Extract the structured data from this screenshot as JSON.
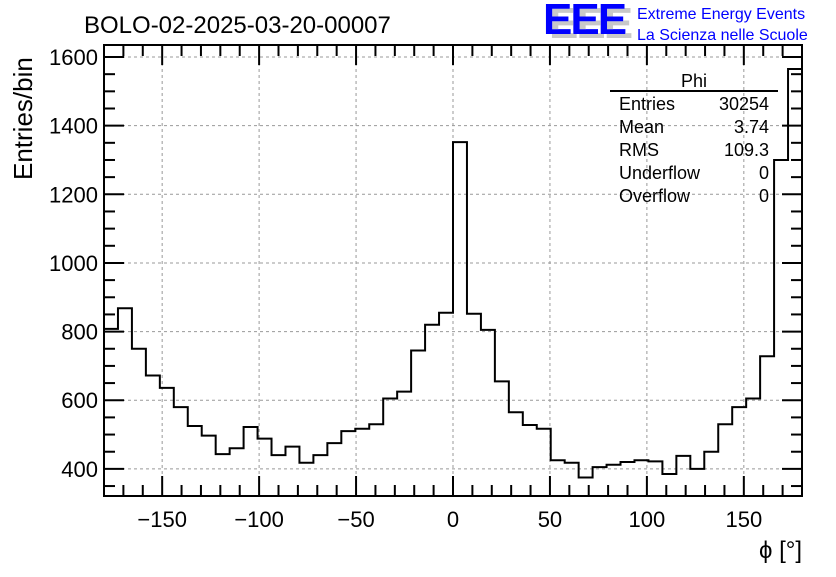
{
  "logo": {
    "text": "EEE",
    "line1": "Extreme Energy Events",
    "line2": "La Scienza nelle Scuole",
    "color": "#0000ff"
  },
  "stats": {
    "title": "Phi",
    "rows": [
      {
        "label": "Entries",
        "value": "30254"
      },
      {
        "label": "Mean",
        "value": "3.74"
      },
      {
        "label": "RMS",
        "value": "109.3"
      },
      {
        "label": "Underflow",
        "value": "0"
      },
      {
        "label": "Overflow",
        "value": "0"
      }
    ]
  },
  "chart_data": {
    "type": "bar",
    "title": "BOLO-02-2025-03-20-00007",
    "xlabel": "ϕ [°]",
    "ylabel": "Entries/bin",
    "xlim": [
      -180,
      180
    ],
    "ylim": [
      321,
      1635
    ],
    "grid": true,
    "bin_width": 7.2,
    "xticks": [
      -150,
      -100,
      -50,
      0,
      50,
      100,
      150
    ],
    "xtick_labels": [
      "−150",
      "−100",
      "−50",
      "0",
      "50",
      "100",
      "150"
    ],
    "yticks": [
      400,
      600,
      800,
      1000,
      1200,
      1400,
      1600
    ],
    "ytick_labels": [
      "400",
      "600",
      "800",
      "1000",
      "1200",
      "1400",
      "1600"
    ],
    "values": [
      808,
      868,
      750,
      672,
      636,
      580,
      525,
      497,
      443,
      460,
      522,
      488,
      440,
      465,
      418,
      440,
      475,
      510,
      517,
      530,
      605,
      625,
      745,
      820,
      855,
      1352,
      852,
      805,
      655,
      565,
      528,
      517,
      425,
      418,
      375,
      405,
      412,
      420,
      425,
      422,
      385,
      438,
      400,
      450,
      530,
      580,
      605,
      728,
      1300,
      1565
    ]
  }
}
